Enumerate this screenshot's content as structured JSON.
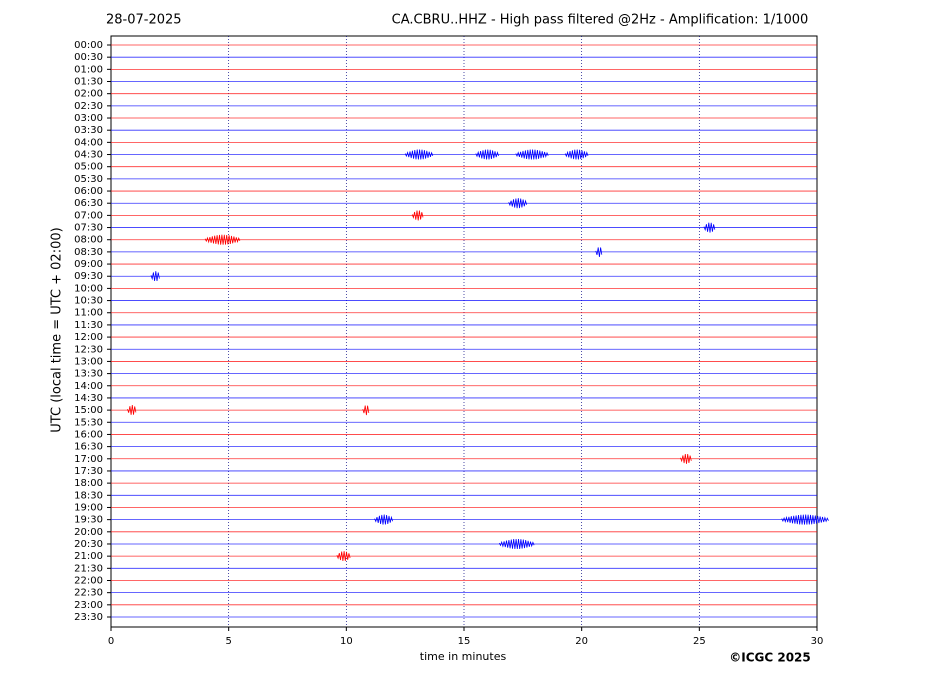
{
  "chart_data": {
    "type": "helicorder",
    "date": "28-07-2025",
    "title": "CA.CBRU..HHZ - High pass filtered @2Hz - Amplification: 1/1000",
    "ylabel": "UTC (local time = UTC + 02:00)",
    "xlabel": "time in minutes",
    "footer": "©ICGC 2025",
    "categories": [
      "00:00",
      "00:30",
      "01:00",
      "01:30",
      "02:00",
      "02:30",
      "03:00",
      "03:30",
      "04:00",
      "04:30",
      "05:00",
      "05:30",
      "06:00",
      "06:30",
      "07:00",
      "07:30",
      "08:00",
      "08:30",
      "09:00",
      "09:30",
      "10:00",
      "10:30",
      "11:00",
      "11:30",
      "12:00",
      "12:30",
      "13:00",
      "13:30",
      "14:00",
      "14:30",
      "15:00",
      "15:30",
      "16:00",
      "16:30",
      "17:00",
      "17:30",
      "18:00",
      "18:30",
      "19:00",
      "19:30",
      "20:00",
      "20:30",
      "21:00",
      "21:30",
      "22:00",
      "22:30",
      "23:00",
      "23:30"
    ],
    "colors": [
      "#ff0000",
      "#0000ff"
    ],
    "xlim": [
      0,
      30
    ],
    "xticks": [
      0,
      5,
      10,
      15,
      20,
      25,
      30
    ],
    "grid": true,
    "events": [
      {
        "row": 9,
        "x": 12.5,
        "width": 1.2
      },
      {
        "row": 9,
        "x": 15.5,
        "width": 1.0
      },
      {
        "row": 9,
        "x": 17.2,
        "width": 1.4
      },
      {
        "row": 9,
        "x": 19.3,
        "width": 1.0
      },
      {
        "row": 13,
        "x": 16.9,
        "width": 0.8
      },
      {
        "row": 14,
        "x": 12.8,
        "width": 0.5
      },
      {
        "row": 15,
        "x": 25.2,
        "width": 0.5
      },
      {
        "row": 16,
        "x": 4.0,
        "width": 1.5
      },
      {
        "row": 17,
        "x": 20.6,
        "width": 0.3
      },
      {
        "row": 19,
        "x": 1.7,
        "width": 0.4
      },
      {
        "row": 30,
        "x": 0.7,
        "width": 0.4
      },
      {
        "row": 30,
        "x": 10.7,
        "width": 0.3
      },
      {
        "row": 34,
        "x": 24.2,
        "width": 0.5
      },
      {
        "row": 39,
        "x": 11.2,
        "width": 0.8
      },
      {
        "row": 39,
        "x": 28.5,
        "width": 2.0
      },
      {
        "row": 41,
        "x": 16.5,
        "width": 1.5
      },
      {
        "row": 42,
        "x": 9.6,
        "width": 0.6
      }
    ]
  }
}
